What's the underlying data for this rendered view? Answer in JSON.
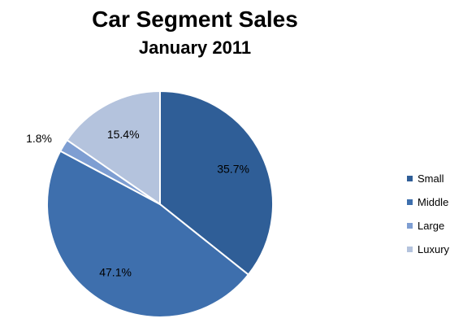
{
  "chart_data": {
    "type": "pie",
    "title": "Car Segment Sales",
    "subtitle": "January 2011",
    "categories": [
      "Small",
      "Middle",
      "Large",
      "Luxury"
    ],
    "values": [
      35.7,
      47.1,
      1.8,
      15.4
    ],
    "labels": [
      "35.7%",
      "47.1%",
      "1.8%",
      "15.4%"
    ],
    "colors": [
      "#2f5e97",
      "#3e6fad",
      "#7e9ed2",
      "#b4c3dd"
    ],
    "legend_position": "right"
  }
}
